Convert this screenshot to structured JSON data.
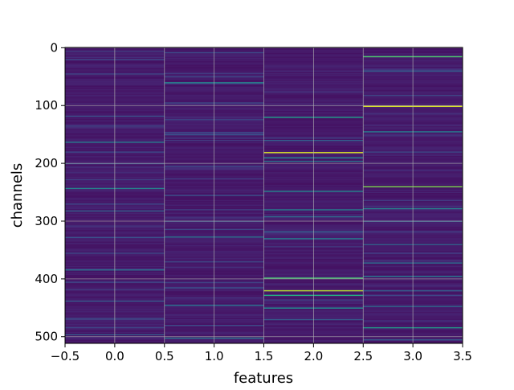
{
  "chart_data": {
    "type": "heatmap",
    "title": "",
    "xlabel": "features",
    "ylabel": "channels",
    "xlim": [
      -0.5,
      3.5
    ],
    "ylim": [
      511.5,
      -0.5
    ],
    "y_inverted": true,
    "grid": true,
    "colormap": "viridis",
    "xticks": [
      "−0.5",
      "0.0",
      "0.5",
      "1.0",
      "1.5",
      "2.0",
      "2.5",
      "3.0",
      "3.5"
    ],
    "xtick_values": [
      -0.5,
      0.0,
      0.5,
      1.0,
      1.5,
      2.0,
      2.5,
      3.0,
      3.5
    ],
    "yticks": [
      "0",
      "100",
      "200",
      "300",
      "400",
      "500"
    ],
    "ytick_values": [
      0,
      100,
      200,
      300,
      400,
      500
    ],
    "n_channels": 512,
    "features": [
      0,
      1,
      2,
      3
    ],
    "baseline_level": 0.05,
    "columns": [
      {
        "feature": 0,
        "bright_channels": [
          {
            "channel": 20,
            "value": 0.22
          },
          {
            "channel": 45,
            "value": 0.2
          },
          {
            "channel": 118,
            "value": 0.25
          },
          {
            "channel": 135,
            "value": 0.22
          },
          {
            "channel": 163,
            "value": 0.42
          },
          {
            "channel": 180,
            "value": 0.22
          },
          {
            "channel": 200,
            "value": 0.25
          },
          {
            "channel": 243,
            "value": 0.45
          },
          {
            "channel": 270,
            "value": 0.22
          },
          {
            "channel": 282,
            "value": 0.3
          },
          {
            "channel": 328,
            "value": 0.25
          },
          {
            "channel": 355,
            "value": 0.22
          },
          {
            "channel": 384,
            "value": 0.38
          },
          {
            "channel": 405,
            "value": 0.22
          },
          {
            "channel": 438,
            "value": 0.28
          },
          {
            "channel": 468,
            "value": 0.22
          },
          {
            "channel": 496,
            "value": 0.3
          }
        ]
      },
      {
        "feature": 1,
        "bright_channels": [
          {
            "channel": 8,
            "value": 0.22
          },
          {
            "channel": 60,
            "value": 0.45
          },
          {
            "channel": 95,
            "value": 0.22
          },
          {
            "channel": 150,
            "value": 0.25
          },
          {
            "channel": 205,
            "value": 0.22
          },
          {
            "channel": 255,
            "value": 0.25
          },
          {
            "channel": 300,
            "value": 0.22
          },
          {
            "channel": 327,
            "value": 0.38
          },
          {
            "channel": 370,
            "value": 0.22
          },
          {
            "channel": 415,
            "value": 0.25
          },
          {
            "channel": 445,
            "value": 0.38
          },
          {
            "channel": 480,
            "value": 0.22
          },
          {
            "channel": 502,
            "value": 0.4
          }
        ]
      },
      {
        "feature": 2,
        "bright_channels": [
          {
            "channel": 120,
            "value": 0.55
          },
          {
            "channel": 160,
            "value": 0.3
          },
          {
            "channel": 181,
            "value": 0.95
          },
          {
            "channel": 190,
            "value": 0.45
          },
          {
            "channel": 196,
            "value": 0.38
          },
          {
            "channel": 248,
            "value": 0.45
          },
          {
            "channel": 280,
            "value": 0.42
          },
          {
            "channel": 292,
            "value": 0.35
          },
          {
            "channel": 318,
            "value": 0.3
          },
          {
            "channel": 330,
            "value": 0.42
          },
          {
            "channel": 398,
            "value": 0.7
          },
          {
            "channel": 420,
            "value": 0.9
          },
          {
            "channel": 428,
            "value": 0.62
          },
          {
            "channel": 450,
            "value": 0.48
          },
          {
            "channel": 470,
            "value": 0.3
          }
        ]
      },
      {
        "feature": 3,
        "bright_channels": [
          {
            "channel": 15,
            "value": 0.72
          },
          {
            "channel": 40,
            "value": 0.3
          },
          {
            "channel": 101,
            "value": 0.95
          },
          {
            "channel": 145,
            "value": 0.42
          },
          {
            "channel": 180,
            "value": 0.22
          },
          {
            "channel": 240,
            "value": 0.8
          },
          {
            "channel": 278,
            "value": 0.45
          },
          {
            "channel": 300,
            "value": 0.28
          },
          {
            "channel": 340,
            "value": 0.32
          },
          {
            "channel": 372,
            "value": 0.35
          },
          {
            "channel": 395,
            "value": 0.4
          },
          {
            "channel": 420,
            "value": 0.3
          },
          {
            "channel": 447,
            "value": 0.35
          },
          {
            "channel": 484,
            "value": 0.55
          },
          {
            "channel": 505,
            "value": 0.3
          }
        ]
      }
    ]
  }
}
